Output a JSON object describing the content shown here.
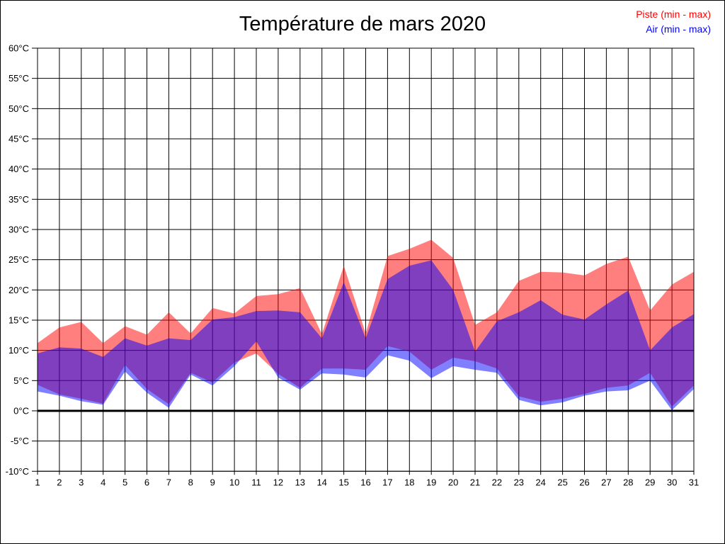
{
  "window": {
    "background": "#ffffff",
    "border_color": "#000000"
  },
  "chart_data": {
    "type": "area",
    "title": "Température de mars 2020",
    "legend": {
      "position": "top-right",
      "items": [
        {
          "label": "Piste (min - max)",
          "color": "#ff0000"
        },
        {
          "label": "Air (min - max)",
          "color": "#0000ff"
        }
      ]
    },
    "x": [
      1,
      2,
      3,
      4,
      5,
      6,
      7,
      8,
      9,
      10,
      11,
      12,
      13,
      14,
      15,
      16,
      17,
      18,
      19,
      20,
      21,
      22,
      23,
      24,
      25,
      26,
      27,
      28,
      29,
      30,
      31
    ],
    "x_tick_labels": [
      "1",
      "2",
      "3",
      "4",
      "5",
      "6",
      "7",
      "8",
      "9",
      "10",
      "11",
      "12",
      "13",
      "14",
      "15",
      "16",
      "17",
      "18",
      "19",
      "20",
      "21",
      "22",
      "23",
      "24",
      "25",
      "26",
      "27",
      "28",
      "29",
      "30",
      "31"
    ],
    "y_axis": {
      "min": -10,
      "max": 60,
      "step": 5,
      "unit": "°C",
      "tick_labels": [
        "60°C",
        "55°C",
        "50°C",
        "45°C",
        "40°C",
        "35°C",
        "30°C",
        "25°C",
        "20°C",
        "15°C",
        "10°C",
        "5°C",
        "0°C",
        "-5°C",
        "-10°C"
      ]
    },
    "grid": true,
    "zero_line_weight": 3,
    "series": [
      {
        "name": "Piste (min - max)",
        "fill": "rgba(255,0,0,0.5)",
        "min": [
          4.3,
          2.7,
          2.0,
          1.2,
          7.6,
          3.6,
          1.1,
          6.3,
          4.7,
          8.0,
          9.5,
          6.1,
          3.8,
          7.0,
          7.0,
          6.8,
          10.7,
          9.8,
          6.8,
          8.8,
          8.2,
          7.0,
          2.4,
          1.5,
          2.0,
          2.8,
          3.8,
          4.2,
          6.3,
          0.7,
          4.2
        ],
        "max": [
          11.2,
          13.8,
          14.7,
          11.2,
          14.0,
          12.6,
          16.3,
          12.8,
          17.0,
          16.1,
          19.0,
          19.3,
          20.3,
          12.7,
          24.0,
          12.8,
          25.6,
          26.8,
          28.3,
          25.3,
          14.2,
          16.3,
          21.5,
          23.0,
          22.9,
          22.4,
          24.3,
          25.5,
          16.6,
          20.9,
          23.0
        ]
      },
      {
        "name": "Air (min - max)",
        "fill": "rgba(0,0,255,0.5)",
        "min": [
          3.2,
          2.5,
          1.6,
          1.0,
          6.5,
          3.0,
          0.5,
          6.0,
          4.2,
          7.4,
          11.5,
          5.5,
          3.5,
          6.2,
          6.0,
          5.5,
          9.2,
          8.3,
          5.4,
          7.4,
          6.8,
          6.3,
          1.8,
          0.9,
          1.4,
          2.5,
          3.2,
          3.4,
          5.0,
          0.1,
          3.6
        ],
        "max": [
          9.5,
          10.5,
          10.3,
          8.9,
          12.0,
          10.8,
          12.0,
          11.7,
          15.1,
          15.5,
          16.5,
          16.6,
          16.3,
          12.0,
          21.3,
          12.0,
          21.8,
          24.0,
          24.9,
          20.0,
          9.8,
          14.8,
          16.3,
          18.3,
          15.9,
          15.1,
          17.6,
          19.9,
          10.0,
          13.8,
          16.0
        ]
      }
    ]
  }
}
